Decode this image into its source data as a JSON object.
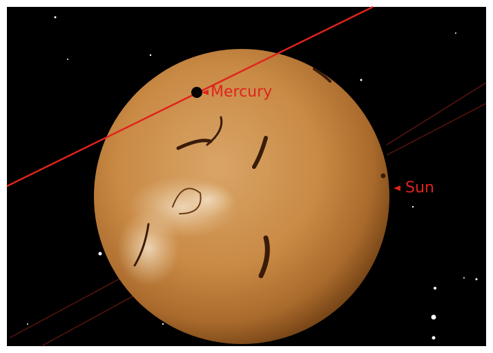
{
  "objects": [
    {
      "label": "Mercury"
    },
    {
      "label": "Sun"
    }
  ]
}
